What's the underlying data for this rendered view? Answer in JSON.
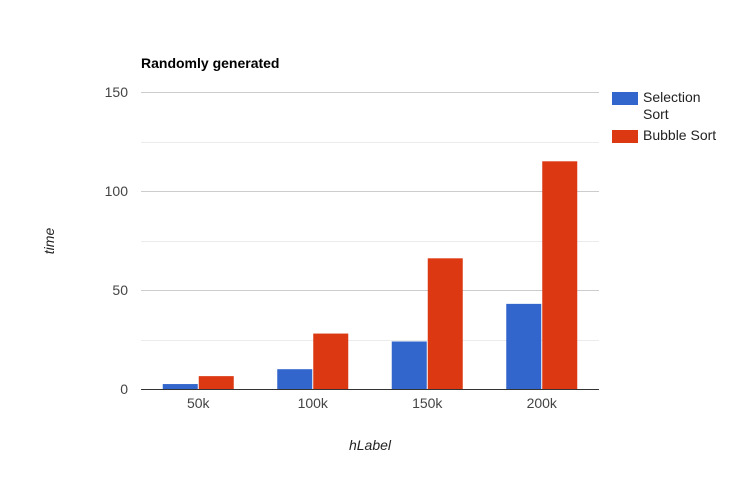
{
  "chart_data": {
    "type": "bar",
    "title": "Randomly generated",
    "xlabel": "hLabel",
    "ylabel": "time",
    "categories": [
      "50k",
      "100k",
      "150k",
      "200k"
    ],
    "series": [
      {
        "name": "Selection Sort",
        "name_lines": [
          "Selection",
          "Sort"
        ],
        "color": "#3366cc",
        "values": [
          2.5,
          10,
          24,
          43
        ]
      },
      {
        "name": "Bubble Sort",
        "name_lines": [
          "Bubble Sort"
        ],
        "color": "#dc3912",
        "values": [
          6.5,
          28,
          66,
          115
        ]
      }
    ],
    "ylim": [
      0,
      150
    ],
    "yticks": [
      0,
      50,
      100,
      150
    ],
    "yticks_labels": [
      "0",
      "50",
      "100",
      "150"
    ],
    "minor_gridlines": [
      25,
      75,
      125
    ],
    "grid": true,
    "legend_position": "right"
  }
}
